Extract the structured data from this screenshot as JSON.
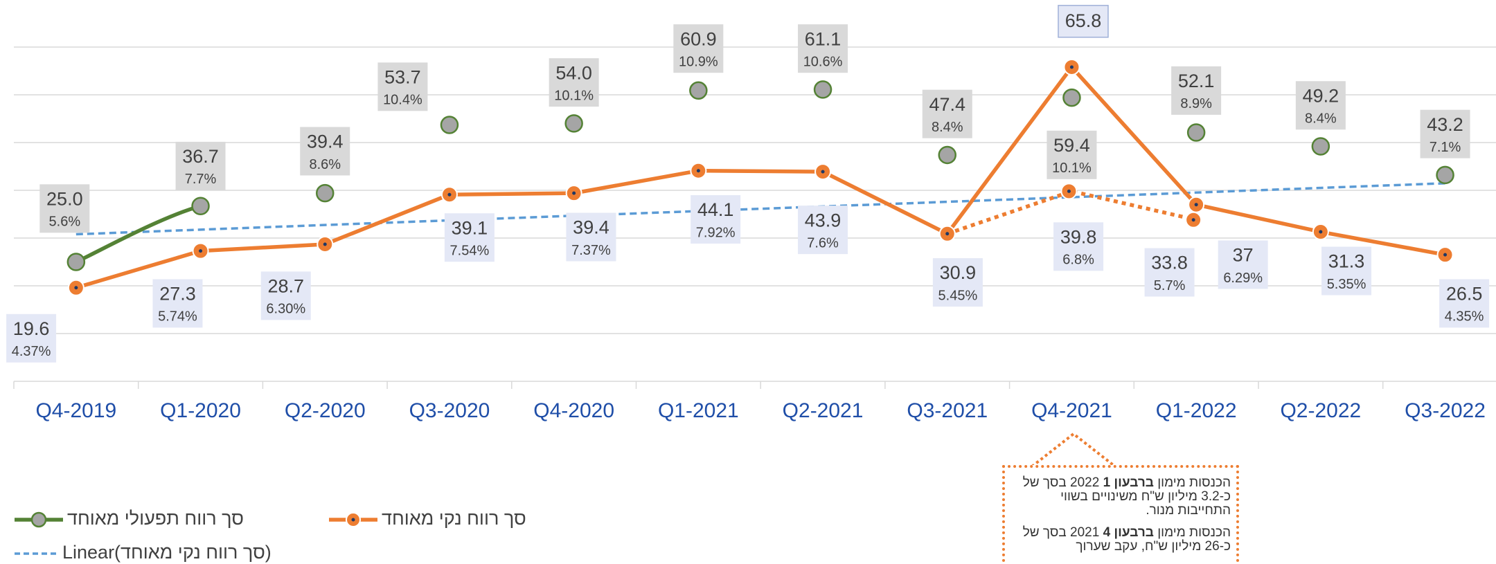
{
  "chart_data": {
    "type": "line",
    "categories": [
      "Q4-2019",
      "Q1-2020",
      "Q2-2020",
      "Q3-2020",
      "Q4-2020",
      "Q1-2021",
      "Q2-2021",
      "Q3-2021",
      "Q4-2021",
      "Q1-2022",
      "Q2-2022",
      "Q3-2022"
    ],
    "ylim": [
      0,
      70
    ],
    "yticks": [
      0,
      10,
      20,
      30,
      40,
      50,
      60,
      70
    ],
    "grid": true,
    "show_y_tick_labels": false,
    "series": [
      {
        "name": "סך רווח תפעולי מאוחד",
        "color": "#548235",
        "marker_fill": "#a5a5a5",
        "smooth": true,
        "line_style": "solid",
        "values": [
          25.0,
          36.7,
          39.4,
          53.7,
          54.0,
          60.9,
          61.1,
          47.4,
          59.4,
          52.1,
          49.2,
          43.2
        ],
        "value_labels": [
          "25.0",
          "36.7",
          "39.4",
          "53.7",
          "54.0",
          "60.9",
          "61.1",
          "47.4",
          "59.4",
          "52.1",
          "49.2",
          "43.2"
        ],
        "percent_labels": [
          "5.6%",
          "7.7%",
          "8.6%",
          "10.4%",
          "10.1%",
          "10.9%",
          "10.6%",
          "8.4%",
          "10.1%",
          "8.9%",
          "8.4%",
          "7.1%"
        ]
      },
      {
        "name": "סך רווח נקי מאוחד",
        "color": "#ed7d31",
        "marker_fill": "#ed7d31",
        "smooth": false,
        "line_style": "solid",
        "values": [
          19.6,
          27.3,
          28.7,
          39.1,
          39.4,
          44.1,
          43.9,
          30.9,
          65.8,
          37,
          31.3,
          26.5
        ],
        "value_labels": [
          "19.6",
          "27.3",
          "28.7",
          "39.1",
          "39.4",
          "44.1",
          "43.9",
          "30.9",
          "65.8",
          "37",
          "31.3",
          "26.5"
        ],
        "percent_labels": [
          "4.37%",
          "5.74%",
          "6.30%",
          "7.54%",
          "7.37%",
          "7.92%",
          "7.6%",
          "5.45%",
          null,
          "6.29%",
          "5.35%",
          "4.35%"
        ]
      },
      {
        "color": "#ed7d31",
        "marker_fill": "#ed7d31",
        "smooth": false,
        "line_style": "dotted",
        "values": [
          null,
          null,
          null,
          null,
          null,
          null,
          null,
          30.9,
          39.8,
          33.8,
          null,
          null
        ],
        "value_labels": [
          null,
          null,
          null,
          null,
          null,
          null,
          null,
          null,
          "39.8",
          "33.8",
          null,
          null
        ],
        "percent_labels": [
          null,
          null,
          null,
          null,
          null,
          null,
          null,
          null,
          "6.8%",
          "5.7%",
          null,
          null
        ]
      }
    ],
    "trendline": {
      "label": "Linear(סך רווח נקי מאוחד)",
      "series": 1,
      "color": "#5b9bd5"
    },
    "annotation": [
      [
        "הכנסות מימון ",
        "ברבעון 1",
        " 2022 בסך של כ-3.2 מיליון ש\"ח משינויים בשווי התחייבות מנור."
      ],
      [
        "הכנסות מימון ",
        "ברבעון 4",
        " 2021 בסך של כ-26 מיליון ש\"ח, עקב שערוך"
      ]
    ]
  }
}
